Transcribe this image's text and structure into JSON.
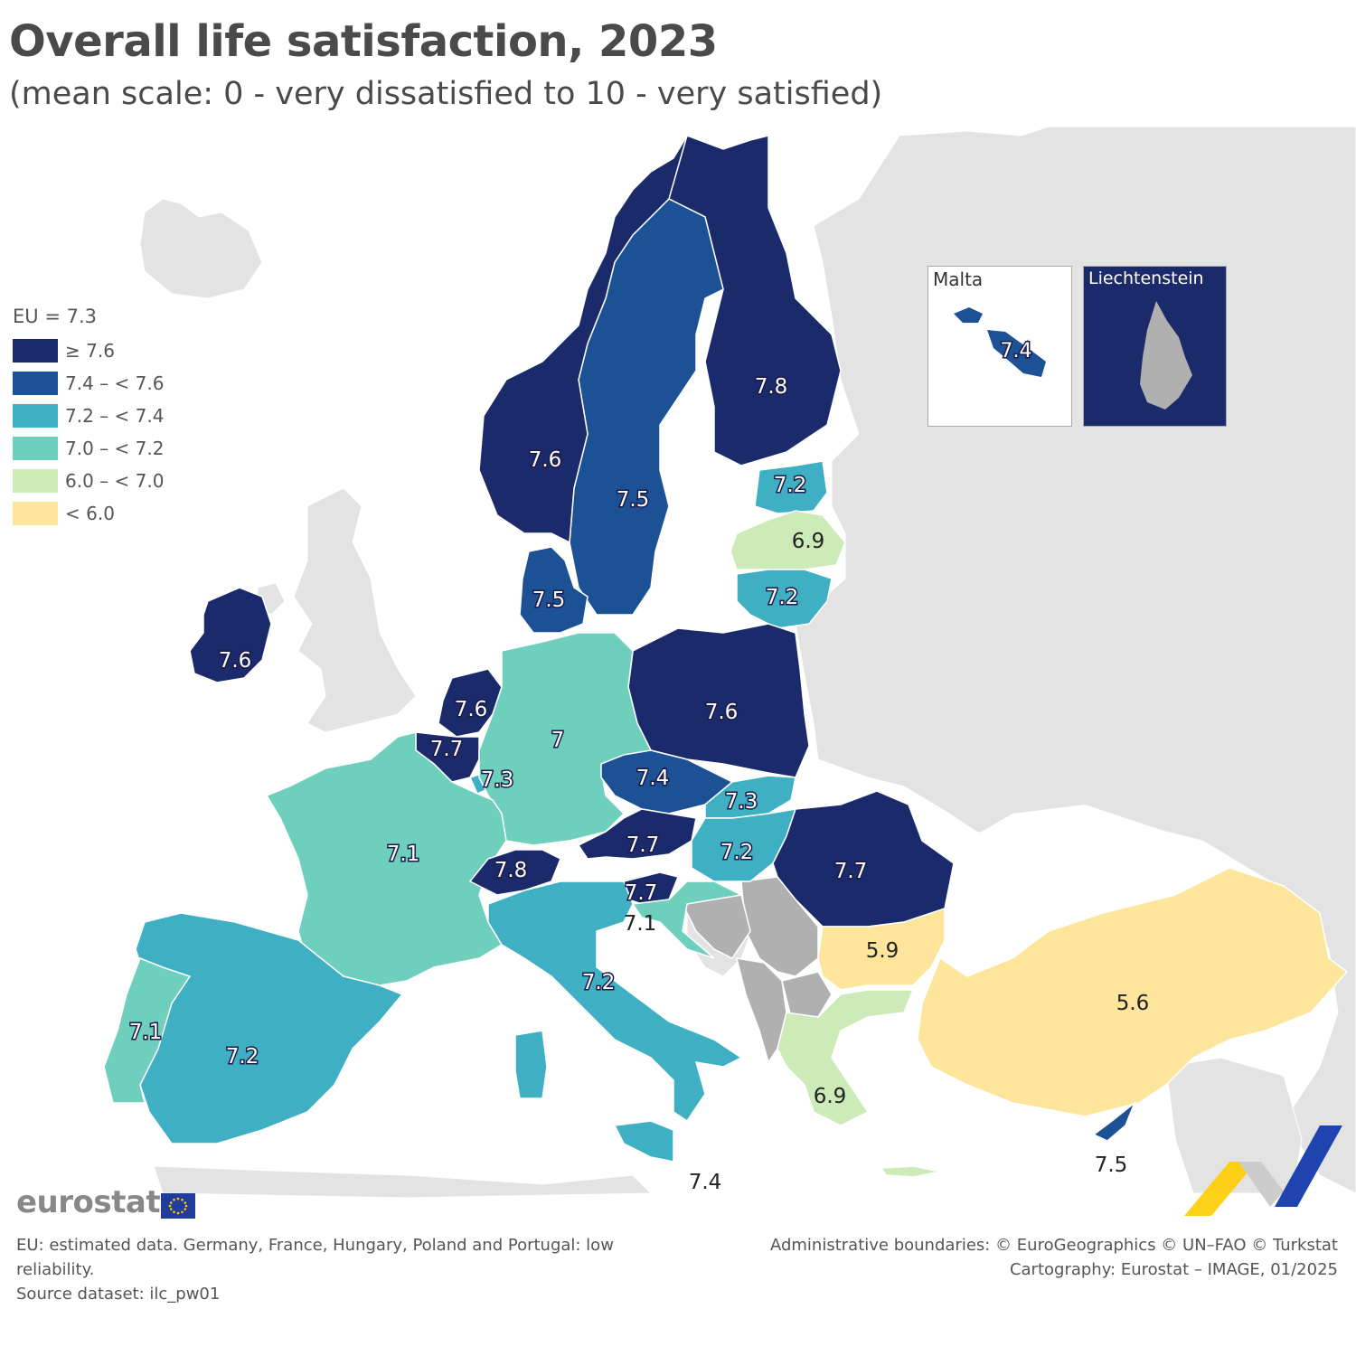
{
  "title": "Overall life satisfaction, 2023",
  "subtitle": "(mean scale: 0 - very dissatisfied to 10 - very satisfied)",
  "legend": {
    "title": "EU = 7.3",
    "items": [
      {
        "label": "≥ 7.6",
        "color": "#1b2a6b"
      },
      {
        "label": "7.4 – < 7.6",
        "color": "#1c5196"
      },
      {
        "label": "7.2 – < 7.4",
        "color": "#3fb0c4"
      },
      {
        "label": "7.0 – < 7.2",
        "color": "#6fcfbd"
      },
      {
        "label": "6.0 – < 7.0",
        "color": "#cdebb8"
      },
      {
        "label": "< 6.0",
        "color": "#fde59b"
      }
    ]
  },
  "colors": {
    "non_eu": "#e3e3e3",
    "no_data": "#b0b0b0",
    "border": "#ffffff",
    "sea": "#ffffff"
  },
  "insets": {
    "malta": {
      "title": "Malta",
      "value": "7.4"
    },
    "liechtenstein": {
      "title": "Liechtenstein"
    }
  },
  "countries": [
    {
      "name": "Finland",
      "value": "7.8",
      "class": 0
    },
    {
      "name": "Sweden",
      "value": "7.5",
      "class": 1
    },
    {
      "name": "Norway",
      "value": "7.6",
      "class": 0
    },
    {
      "name": "Denmark",
      "value": "7.5",
      "class": 1
    },
    {
      "name": "Ireland",
      "value": "7.6",
      "class": 0
    },
    {
      "name": "Estonia",
      "value": "7.2",
      "class": 2
    },
    {
      "name": "Latvia",
      "value": "6.9",
      "class": 4
    },
    {
      "name": "Lithuania",
      "value": "7.2",
      "class": 2
    },
    {
      "name": "Poland",
      "value": "7.6",
      "class": 0
    },
    {
      "name": "Netherlands",
      "value": "7.6",
      "class": 0
    },
    {
      "name": "Belgium",
      "value": "7.7",
      "class": 0
    },
    {
      "name": "Luxembourg",
      "value": "7.3",
      "class": 2
    },
    {
      "name": "Germany",
      "value": "7",
      "class": 3
    },
    {
      "name": "Czechia",
      "value": "7.4",
      "class": 1
    },
    {
      "name": "Slovakia",
      "value": "7.3",
      "class": 2
    },
    {
      "name": "Austria",
      "value": "7.7",
      "class": 0
    },
    {
      "name": "Hungary",
      "value": "7.2",
      "class": 2
    },
    {
      "name": "Romania",
      "value": "7.7",
      "class": 0
    },
    {
      "name": "France",
      "value": "7.1",
      "class": 3
    },
    {
      "name": "Switzerland",
      "value": "7.8",
      "class": 0
    },
    {
      "name": "Slovenia",
      "value": "7.7",
      "class": 0
    },
    {
      "name": "Croatia",
      "value": "7.1",
      "class": 3
    },
    {
      "name": "Italy",
      "value": "7.2",
      "class": 2
    },
    {
      "name": "Bulgaria",
      "value": "5.9",
      "class": 5
    },
    {
      "name": "Türkiye",
      "value": "5.6",
      "class": 5
    },
    {
      "name": "Greece",
      "value": "6.9",
      "class": 4
    },
    {
      "name": "Spain",
      "value": "7.2",
      "class": 2
    },
    {
      "name": "Portugal",
      "value": "7.1",
      "class": 3
    },
    {
      "name": "Cyprus",
      "value": "7.5",
      "class": 1
    },
    {
      "name": "Malta (main map)",
      "value": "7.4",
      "class": 1
    }
  ],
  "branding": {
    "logo": "eurostat"
  },
  "footer": {
    "note": "EU: estimated data. Germany, France, Hungary, Poland and Portugal: low reliability.",
    "source": "Source dataset: ilc_pw01",
    "boundaries": "Administrative boundaries: © EuroGeographics © UN–FAO © Turkstat",
    "cartography": "Cartography: Eurostat – IMAGE, 01/2025"
  }
}
